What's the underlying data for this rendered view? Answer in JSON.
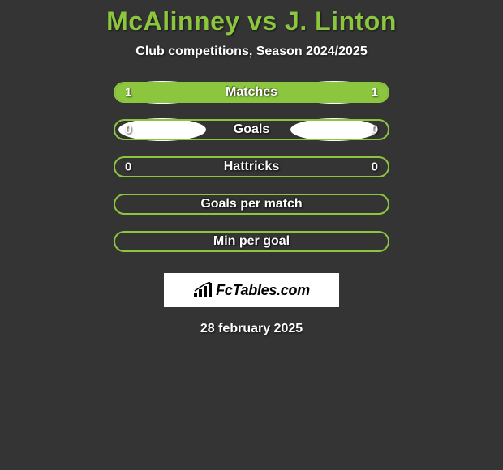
{
  "title": "McAlinney vs J. Linton",
  "subtitle": "Club competitions, Season 2024/2025",
  "date": "28 february 2025",
  "colors": {
    "background": "#343434",
    "accent": "#8cc63f",
    "text": "#ffffff",
    "ellipse_left_1": "#ffffff",
    "ellipse_left_2": "#ffffff",
    "ellipse_right_1": "#ffffff",
    "ellipse_right_2": "#ffffff",
    "logo_bg": "#ffffff",
    "logo_text": "#000000"
  },
  "logo": {
    "text": "FcTables.com"
  },
  "stats": [
    {
      "label": "Matches",
      "left_value": "1",
      "right_value": "1",
      "left_fill_pct": 50,
      "right_fill_pct": 50,
      "show_left_ellipse": true,
      "show_right_ellipse": true,
      "left_ellipse_color": "#ffffff",
      "right_ellipse_color": "#ffffff"
    },
    {
      "label": "Goals",
      "left_value": "0",
      "right_value": "0",
      "left_fill_pct": 0,
      "right_fill_pct": 0,
      "show_left_ellipse": true,
      "show_right_ellipse": true,
      "left_ellipse_color": "#ffffff",
      "right_ellipse_color": "#ffffff"
    },
    {
      "label": "Hattricks",
      "left_value": "0",
      "right_value": "0",
      "left_fill_pct": 0,
      "right_fill_pct": 0,
      "show_left_ellipse": false,
      "show_right_ellipse": false
    },
    {
      "label": "Goals per match",
      "left_value": "",
      "right_value": "",
      "left_fill_pct": 0,
      "right_fill_pct": 0,
      "show_left_ellipse": false,
      "show_right_ellipse": false
    },
    {
      "label": "Min per goal",
      "left_value": "",
      "right_value": "",
      "left_fill_pct": 0,
      "right_fill_pct": 0,
      "show_left_ellipse": false,
      "show_right_ellipse": false
    }
  ]
}
